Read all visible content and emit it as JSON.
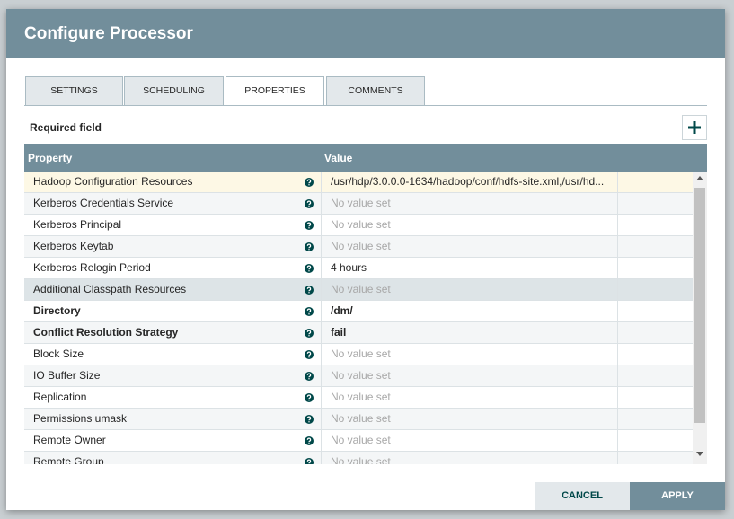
{
  "dialog": {
    "title": "Configure Processor",
    "tabs": [
      "SETTINGS",
      "SCHEDULING",
      "PROPERTIES",
      "COMMENTS"
    ],
    "active_tab": 2,
    "required_label": "Required field",
    "table": {
      "columns": [
        "Property",
        "Value"
      ],
      "rows": [
        {
          "property": "Hadoop Configuration Resources",
          "value": "/usr/hdp/3.0.0.0-1634/hadoop/conf/hdfs-site.xml,/usr/hd...",
          "required": false,
          "empty": false
        },
        {
          "property": "Kerberos Credentials Service",
          "value": "No value set",
          "required": false,
          "empty": true
        },
        {
          "property": "Kerberos Principal",
          "value": "No value set",
          "required": false,
          "empty": true
        },
        {
          "property": "Kerberos Keytab",
          "value": "No value set",
          "required": false,
          "empty": true
        },
        {
          "property": "Kerberos Relogin Period",
          "value": "4 hours",
          "required": false,
          "empty": false
        },
        {
          "property": "Additional Classpath Resources",
          "value": "No value set",
          "required": false,
          "empty": true
        },
        {
          "property": "Directory",
          "value": "/dm/",
          "required": true,
          "empty": false
        },
        {
          "property": "Conflict Resolution Strategy",
          "value": "fail",
          "required": true,
          "empty": false
        },
        {
          "property": "Block Size",
          "value": "No value set",
          "required": false,
          "empty": true
        },
        {
          "property": "IO Buffer Size",
          "value": "No value set",
          "required": false,
          "empty": true
        },
        {
          "property": "Replication",
          "value": "No value set",
          "required": false,
          "empty": true
        },
        {
          "property": "Permissions umask",
          "value": "No value set",
          "required": false,
          "empty": true
        },
        {
          "property": "Remote Owner",
          "value": "No value set",
          "required": false,
          "empty": true
        },
        {
          "property": "Remote Group",
          "value": "No value set",
          "required": false,
          "empty": true
        }
      ]
    },
    "buttons": {
      "cancel": "CANCEL",
      "apply": "APPLY"
    }
  }
}
